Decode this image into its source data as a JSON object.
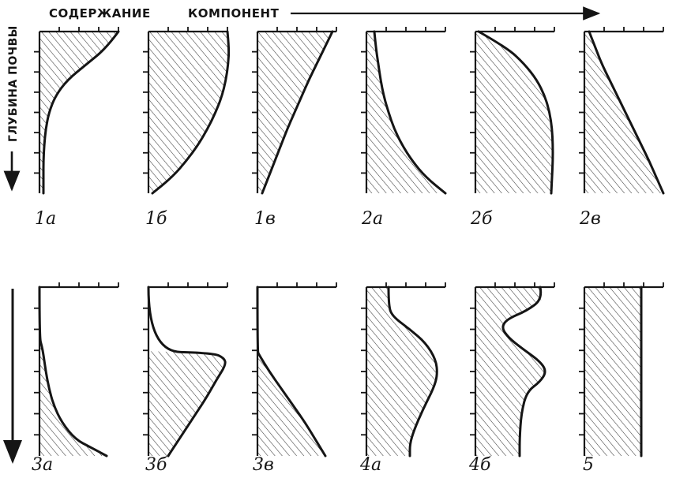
{
  "header": {
    "left": "СОДЕРЖАНИЕ",
    "right": "КОМПОНЕНТ"
  },
  "y_axis_label": "ГЛУБИНА ПОЧВЫ",
  "colors": {
    "ink": "#151515",
    "hatch": "#3a3a3a",
    "background": "#ffffff"
  },
  "panels": [
    {
      "label": "1а",
      "profile": [
        [
          0.0,
          1.0
        ],
        [
          0.1,
          0.85
        ],
        [
          0.2,
          0.6
        ],
        [
          0.3,
          0.35
        ],
        [
          0.4,
          0.2
        ],
        [
          0.5,
          0.12
        ],
        [
          0.6,
          0.08
        ],
        [
          0.7,
          0.06
        ],
        [
          0.8,
          0.05
        ],
        [
          0.9,
          0.05
        ],
        [
          1.0,
          0.05
        ]
      ]
    },
    {
      "label": "1б",
      "profile": [
        [
          0.0,
          1.0
        ],
        [
          0.1,
          1.02
        ],
        [
          0.2,
          1.01
        ],
        [
          0.3,
          0.98
        ],
        [
          0.4,
          0.93
        ],
        [
          0.5,
          0.85
        ],
        [
          0.6,
          0.75
        ],
        [
          0.7,
          0.63
        ],
        [
          0.8,
          0.48
        ],
        [
          0.9,
          0.3
        ],
        [
          1.0,
          0.05
        ]
      ]
    },
    {
      "label": "1в",
      "profile": [
        [
          0.0,
          0.95
        ],
        [
          0.1,
          0.85
        ],
        [
          0.2,
          0.75
        ],
        [
          0.3,
          0.65
        ],
        [
          0.4,
          0.56
        ],
        [
          0.5,
          0.47
        ],
        [
          0.6,
          0.38
        ],
        [
          0.7,
          0.3
        ],
        [
          0.8,
          0.22
        ],
        [
          0.9,
          0.14
        ],
        [
          1.0,
          0.06
        ]
      ]
    },
    {
      "label": "2а",
      "profile": [
        [
          0.0,
          0.1
        ],
        [
          0.1,
          0.12
        ],
        [
          0.2,
          0.15
        ],
        [
          0.3,
          0.18
        ],
        [
          0.4,
          0.22
        ],
        [
          0.5,
          0.28
        ],
        [
          0.6,
          0.35
        ],
        [
          0.7,
          0.45
        ],
        [
          0.8,
          0.58
        ],
        [
          0.9,
          0.75
        ],
        [
          1.0,
          1.0
        ]
      ]
    },
    {
      "label": "2б",
      "profile": [
        [
          0.0,
          0.04
        ],
        [
          0.1,
          0.4
        ],
        [
          0.2,
          0.62
        ],
        [
          0.3,
          0.78
        ],
        [
          0.4,
          0.88
        ],
        [
          0.5,
          0.94
        ],
        [
          0.6,
          0.97
        ],
        [
          0.7,
          0.98
        ],
        [
          0.8,
          0.98
        ],
        [
          0.9,
          0.97
        ],
        [
          1.0,
          0.96
        ]
      ]
    },
    {
      "label": "2в",
      "profile": [
        [
          0.0,
          0.06
        ],
        [
          0.1,
          0.14
        ],
        [
          0.2,
          0.22
        ],
        [
          0.3,
          0.32
        ],
        [
          0.4,
          0.42
        ],
        [
          0.5,
          0.52
        ],
        [
          0.6,
          0.62
        ],
        [
          0.7,
          0.72
        ],
        [
          0.8,
          0.82
        ],
        [
          0.9,
          0.91
        ],
        [
          1.0,
          1.0
        ]
      ]
    },
    {
      "label": "3а",
      "profile": [
        [
          0.0,
          0.0
        ],
        [
          0.3,
          0.0
        ],
        [
          0.35,
          0.03
        ],
        [
          0.4,
          0.05
        ],
        [
          0.5,
          0.08
        ],
        [
          0.6,
          0.12
        ],
        [
          0.7,
          0.18
        ],
        [
          0.8,
          0.28
        ],
        [
          0.9,
          0.45
        ],
        [
          0.95,
          0.65
        ],
        [
          1.0,
          0.85
        ]
      ]
    },
    {
      "label": "3б",
      "profile": [
        [
          0.0,
          0.0
        ],
        [
          0.38,
          0.0
        ],
        [
          0.39,
          0.82
        ],
        [
          0.42,
          0.96
        ],
        [
          0.46,
          0.98
        ],
        [
          0.55,
          0.86
        ],
        [
          0.65,
          0.74
        ],
        [
          0.75,
          0.6
        ],
        [
          0.85,
          0.46
        ],
        [
          0.95,
          0.32
        ],
        [
          1.0,
          0.25
        ]
      ]
    },
    {
      "label": "3в",
      "profile": [
        [
          0.0,
          0.0
        ],
        [
          0.38,
          0.0
        ],
        [
          0.4,
          0.02
        ],
        [
          0.5,
          0.15
        ],
        [
          0.6,
          0.3
        ],
        [
          0.7,
          0.45
        ],
        [
          0.8,
          0.6
        ],
        [
          0.9,
          0.73
        ],
        [
          1.0,
          0.86
        ]
      ]
    },
    {
      "label": "4а",
      "profile": [
        [
          0.0,
          0.28
        ],
        [
          0.1,
          0.28
        ],
        [
          0.17,
          0.32
        ],
        [
          0.25,
          0.55
        ],
        [
          0.33,
          0.75
        ],
        [
          0.43,
          0.88
        ],
        [
          0.52,
          0.9
        ],
        [
          0.6,
          0.85
        ],
        [
          0.72,
          0.72
        ],
        [
          0.85,
          0.6
        ],
        [
          0.93,
          0.55
        ],
        [
          1.0,
          0.55
        ]
      ]
    },
    {
      "label": "4б",
      "profile": [
        [
          0.0,
          0.82
        ],
        [
          0.07,
          0.85
        ],
        [
          0.14,
          0.65
        ],
        [
          0.19,
          0.4
        ],
        [
          0.24,
          0.33
        ],
        [
          0.3,
          0.42
        ],
        [
          0.36,
          0.58
        ],
        [
          0.44,
          0.82
        ],
        [
          0.5,
          0.9
        ],
        [
          0.56,
          0.82
        ],
        [
          0.62,
          0.65
        ],
        [
          0.75,
          0.58
        ],
        [
          0.9,
          0.56
        ],
        [
          1.0,
          0.56
        ]
      ]
    },
    {
      "label": "5",
      "profile": [
        [
          0.0,
          0.72
        ],
        [
          1.0,
          0.72
        ]
      ]
    }
  ]
}
